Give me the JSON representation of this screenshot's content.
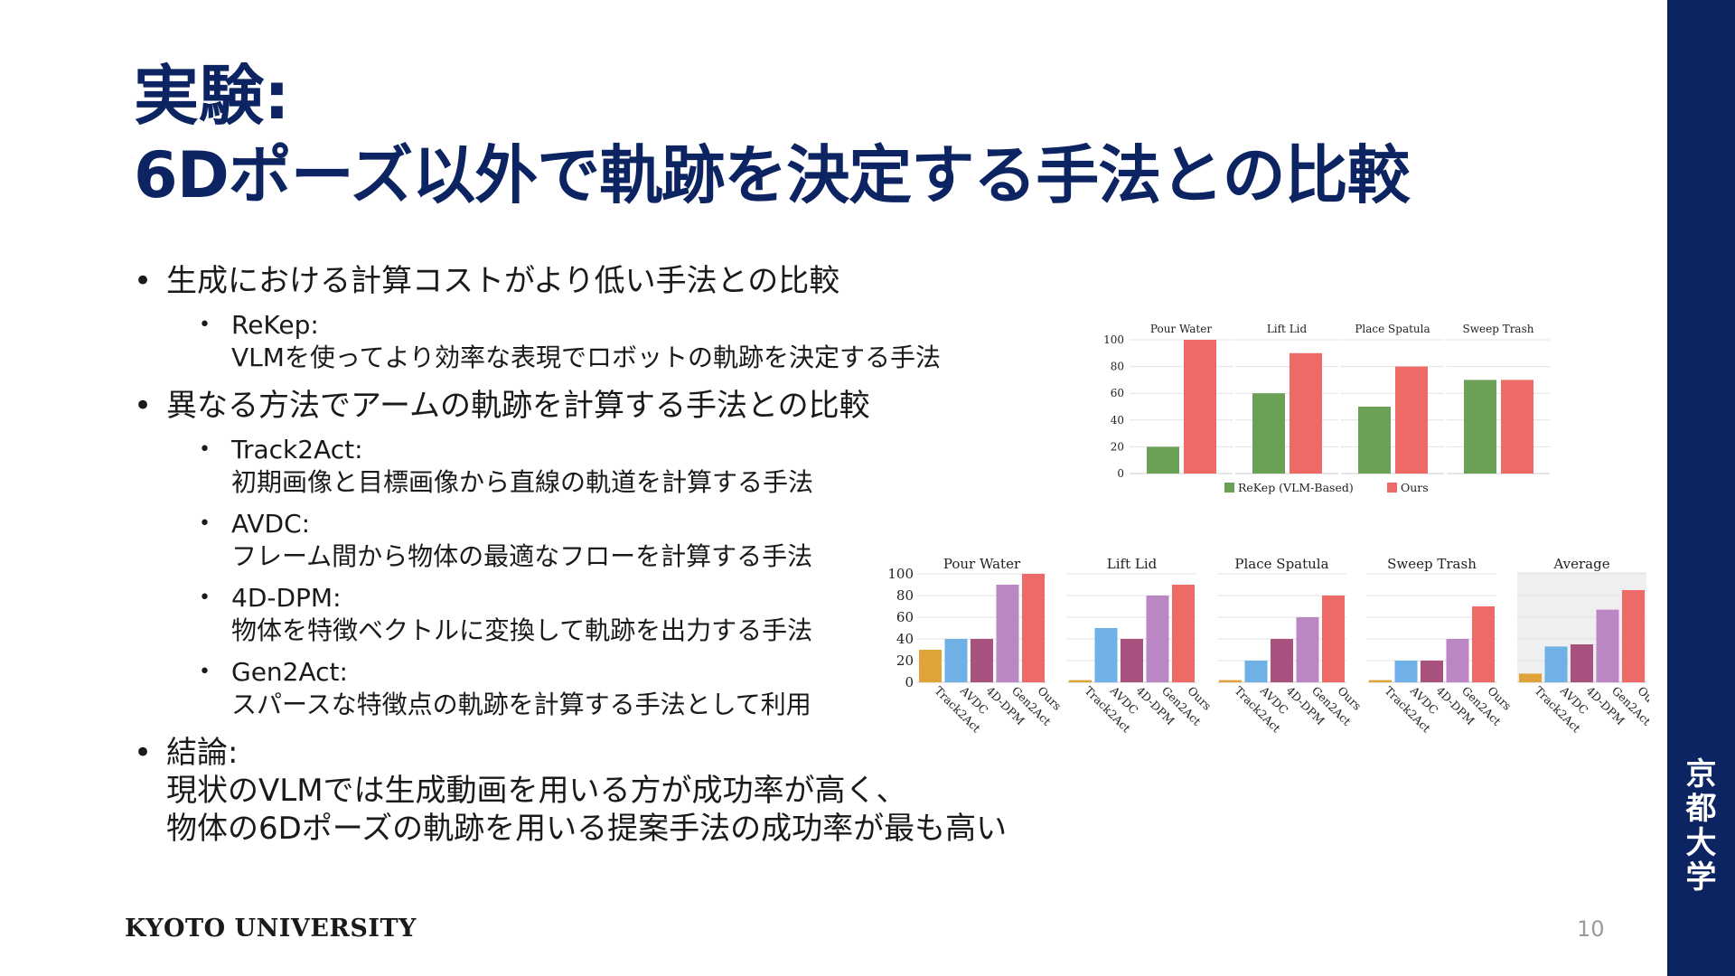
{
  "slide": {
    "title_line1": "実験:",
    "title_line2": "6Dポーズ以外で軌跡を決定する手法との比較",
    "footer_university": "KYOTO UNIVERSITY",
    "page_number": "10",
    "logo_chars": [
      "京",
      "都",
      "大",
      "学"
    ],
    "bullet_glyph": "•"
  },
  "bullets": [
    {
      "text": "生成における計算コストがより低い手法との比較",
      "subs": [
        {
          "name": "ReKep:",
          "desc": "VLMを使ってより効率な表現でロボットの軌跡を決定する手法"
        }
      ]
    },
    {
      "text": "異なる方法でアームの軌跡を計算する手法との比較",
      "subs": [
        {
          "name": "Track2Act:",
          "desc": "初期画像と目標画像から直線の軌道を計算する手法"
        },
        {
          "name": "AVDC:",
          "desc": "フレーム間から物体の最適なフローを計算する手法"
        },
        {
          "name": "4D-DPM:",
          "desc": "物体を特徴ベクトルに変換して軌跡を出力する手法"
        },
        {
          "name": "Gen2Act:",
          "desc": "スパースな特徴点の軌跡を計算する手法として利用"
        }
      ]
    },
    {
      "text": "結論:",
      "lines": [
        "現状のVLMでは生成動画を用いる方が成功率が高く、",
        "物体の6Dポーズの軌跡を用いる提案手法の成功率が最も高い"
      ]
    }
  ],
  "chart_data": [
    {
      "type": "bar",
      "panels": [
        "Pour Water",
        "Lift Lid",
        "Place Spatula",
        "Sweep Trash"
      ],
      "series": [
        {
          "name": "ReKep (VLM-Based)",
          "color": "#6aa156",
          "values": [
            20,
            60,
            50,
            70
          ]
        },
        {
          "name": "Ours",
          "color": "#ee6a66",
          "values": [
            100,
            90,
            80,
            70
          ]
        }
      ],
      "ylim": [
        0,
        100
      ],
      "yticks": [
        0,
        20,
        40,
        60,
        80,
        100
      ],
      "legend": "bottom",
      "grid": true
    },
    {
      "type": "bar",
      "panels": [
        "Pour Water",
        "Lift Lid",
        "Place Spatula",
        "Sweep Trash",
        "Average"
      ],
      "categories": [
        "Track2Act",
        "AVDC",
        "4D-DPM",
        "Gen2Act",
        "Ours"
      ],
      "colors": [
        "#e0a33a",
        "#6fb0e6",
        "#a9517f",
        "#bb86c4",
        "#ee6a66"
      ],
      "values": [
        [
          30,
          40,
          40,
          90,
          100
        ],
        [
          2,
          50,
          40,
          80,
          90
        ],
        [
          2,
          20,
          40,
          60,
          80
        ],
        [
          2,
          20,
          20,
          40,
          70
        ],
        [
          8,
          33,
          35,
          67,
          85
        ]
      ],
      "ylim": [
        0,
        100
      ],
      "yticks": [
        0,
        20,
        40,
        60,
        80,
        100
      ],
      "grid": true,
      "shaded_panel": "Average"
    }
  ]
}
